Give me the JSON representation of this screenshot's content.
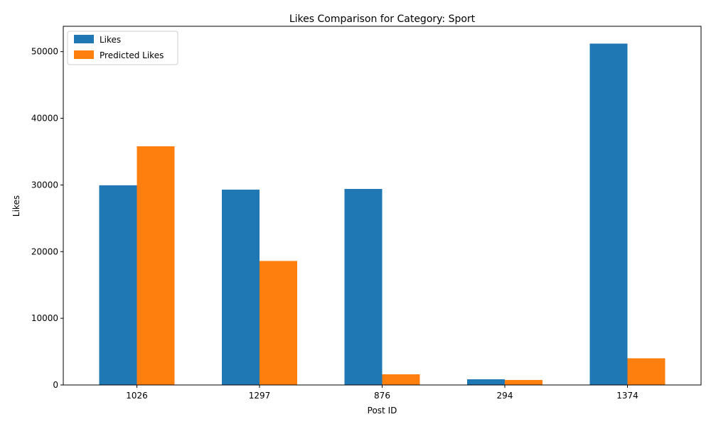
{
  "chart_data": {
    "type": "bar",
    "title": "Likes Comparison for Category: Sport",
    "xlabel": "Post ID",
    "ylabel": "Likes",
    "categories": [
      "1026",
      "1297",
      "876",
      "294",
      "1374"
    ],
    "series": [
      {
        "name": "Likes",
        "color": "#1f77b4",
        "values": [
          29950,
          29300,
          29400,
          850,
          51200
        ]
      },
      {
        "name": "Predicted Likes",
        "color": "#ff7f0e",
        "values": [
          35800,
          18600,
          1600,
          750,
          4000
        ]
      }
    ],
    "yticks": [
      0,
      10000,
      20000,
      30000,
      40000,
      50000
    ],
    "ylim": [
      0,
      53800
    ],
    "grid": false,
    "legend_position": "top-left"
  }
}
